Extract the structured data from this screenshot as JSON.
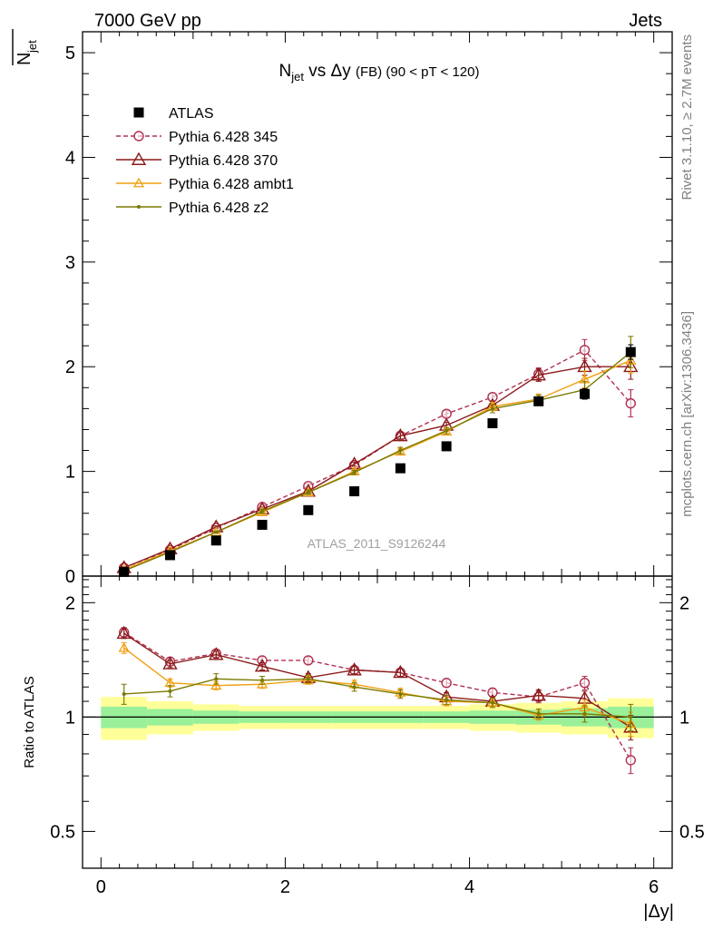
{
  "header": {
    "left": "7000 GeV pp",
    "right": "Jets"
  },
  "side_labels": {
    "rivet": "Rivet 3.1.10, ≥ 2.7M events",
    "mcplots": "mcplots.cern.ch [arXiv:1306.3436]"
  },
  "chart_data": [
    {
      "type": "scatter",
      "title_parts": [
        "N",
        "jet",
        " vs Δy ",
        "(FB)",
        " (90 < pT < 120)"
      ],
      "ylabel_parts": [
        "N",
        "jet"
      ],
      "watermark": "ATLAS_2011_S9126244",
      "xlim": [
        -0.2,
        6.2
      ],
      "ylim": [
        0,
        5.2
      ],
      "y_ticks": [
        0,
        1,
        2,
        3,
        4,
        5
      ],
      "x": [
        0.25,
        0.75,
        1.25,
        1.75,
        2.25,
        2.75,
        3.25,
        3.75,
        4.25,
        4.75,
        5.25,
        5.75
      ],
      "legend_position": "top-left",
      "series": [
        {
          "name": "ATLAS",
          "color": "#000000",
          "marker": "square",
          "line": "none",
          "values": [
            0.04,
            0.2,
            0.34,
            0.49,
            0.63,
            0.81,
            1.03,
            1.24,
            1.46,
            1.67,
            1.74,
            2.14
          ],
          "errors": [
            0.01,
            0.01,
            0.01,
            0.01,
            0.02,
            0.02,
            0.02,
            0.03,
            0.03,
            0.04,
            0.05,
            0.07
          ]
        },
        {
          "name": "Pythia 6.428 345",
          "color": "#b03050",
          "marker": "circle-open",
          "line": "dashed",
          "values": [
            0.08,
            0.25,
            0.46,
            0.66,
            0.86,
            1.06,
            1.34,
            1.55,
            1.71,
            1.93,
            2.16,
            1.65
          ],
          "errors": [
            0.01,
            0.01,
            0.01,
            0.02,
            0.02,
            0.02,
            0.03,
            0.03,
            0.04,
            0.06,
            0.1,
            0.13
          ]
        },
        {
          "name": "Pythia 6.428 370",
          "color": "#8b1a1a",
          "marker": "triangle-open",
          "line": "solid",
          "values": [
            0.08,
            0.26,
            0.47,
            0.64,
            0.81,
            1.07,
            1.34,
            1.44,
            1.63,
            1.92,
            2.0,
            2.0
          ],
          "errors": [
            0.01,
            0.01,
            0.01,
            0.02,
            0.02,
            0.02,
            0.03,
            0.03,
            0.04,
            0.06,
            0.08,
            0.12
          ]
        },
        {
          "name": "Pythia 6.428 ambt1",
          "color": "#f0a010",
          "marker": "triangle-open-small",
          "line": "solid",
          "values": [
            0.06,
            0.24,
            0.42,
            0.61,
            0.8,
            1.0,
            1.19,
            1.38,
            1.62,
            1.69,
            1.88,
            2.06
          ],
          "errors": [
            0.01,
            0.01,
            0.01,
            0.02,
            0.02,
            0.02,
            0.03,
            0.03,
            0.04,
            0.05,
            0.08,
            0.12
          ]
        },
        {
          "name": "Pythia 6.428 z2",
          "color": "#7a7a00",
          "marker": "dot",
          "line": "solid",
          "values": [
            0.05,
            0.23,
            0.42,
            0.62,
            0.8,
            0.99,
            1.2,
            1.39,
            1.6,
            1.68,
            1.78,
            2.14
          ],
          "errors": [
            0.01,
            0.01,
            0.01,
            0.02,
            0.02,
            0.02,
            0.03,
            0.03,
            0.04,
            0.05,
            0.08,
            0.15
          ]
        }
      ]
    },
    {
      "type": "scatter",
      "ylabel": "Ratio to ATLAS",
      "xlabel": "|Δy|",
      "xlim": [
        -0.2,
        6.2
      ],
      "ylim": [
        0.4,
        2.35
      ],
      "y_scale": "log",
      "y_ticks": [
        0.5,
        1,
        2
      ],
      "x_ticks": [
        0,
        2,
        4,
        6
      ],
      "x": [
        0.25,
        0.75,
        1.25,
        1.75,
        2.25,
        2.75,
        3.25,
        3.75,
        4.25,
        4.75,
        5.25,
        5.75
      ],
      "x_edges": [
        0,
        0.5,
        1,
        1.5,
        2,
        2.5,
        3,
        3.5,
        4,
        4.5,
        5,
        5.5,
        6
      ],
      "ref_band_inner": [
        0.065,
        0.05,
        0.04,
        0.035,
        0.035,
        0.035,
        0.035,
        0.035,
        0.04,
        0.045,
        0.055,
        0.065
      ],
      "ref_band_outer": [
        0.13,
        0.1,
        0.08,
        0.07,
        0.07,
        0.07,
        0.07,
        0.07,
        0.08,
        0.09,
        0.1,
        0.12
      ],
      "series": [
        {
          "name": "Pythia 6.428 345",
          "color": "#b03050",
          "marker": "circle-open",
          "line": "dashed",
          "values": [
            1.67,
            1.4,
            1.47,
            1.41,
            1.41,
            1.33,
            1.31,
            1.23,
            1.16,
            1.13,
            1.23,
            0.77
          ],
          "errors": [
            0.05,
            0.03,
            0.03,
            0.03,
            0.03,
            0.03,
            0.03,
            0.03,
            0.03,
            0.04,
            0.05,
            0.06
          ]
        },
        {
          "name": "Pythia 6.428 370",
          "color": "#8b1a1a",
          "marker": "triangle-open",
          "line": "solid",
          "values": [
            1.66,
            1.38,
            1.46,
            1.36,
            1.27,
            1.33,
            1.31,
            1.13,
            1.1,
            1.14,
            1.12,
            0.94
          ],
          "errors": [
            0.05,
            0.03,
            0.03,
            0.03,
            0.03,
            0.03,
            0.03,
            0.03,
            0.03,
            0.04,
            0.05,
            0.07
          ]
        },
        {
          "name": "Pythia 6.428 ambt1",
          "color": "#f0a010",
          "marker": "triangle-open-small",
          "line": "solid",
          "values": [
            1.52,
            1.23,
            1.21,
            1.22,
            1.25,
            1.22,
            1.16,
            1.1,
            1.09,
            1.01,
            1.06,
            0.96
          ],
          "errors": [
            0.05,
            0.03,
            0.03,
            0.03,
            0.03,
            0.03,
            0.03,
            0.03,
            0.03,
            0.03,
            0.05,
            0.07
          ]
        },
        {
          "name": "Pythia 6.428 z2",
          "color": "#7a7a00",
          "marker": "dot",
          "line": "solid",
          "values": [
            1.15,
            1.17,
            1.26,
            1.25,
            1.26,
            1.2,
            1.15,
            1.11,
            1.09,
            1.02,
            1.02,
            1.0
          ],
          "errors": [
            0.07,
            0.04,
            0.04,
            0.03,
            0.03,
            0.03,
            0.03,
            0.03,
            0.03,
            0.03,
            0.05,
            0.08
          ]
        }
      ]
    }
  ]
}
